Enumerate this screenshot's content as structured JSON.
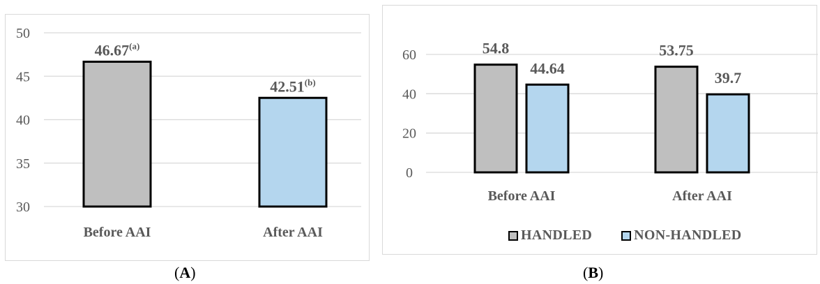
{
  "chart_data": [
    {
      "id": "A",
      "type": "bar",
      "categories": [
        "Before AAI",
        "After AAI"
      ],
      "values": [
        46.67,
        42.51
      ],
      "value_labels": [
        "46.67",
        "42.51"
      ],
      "superscripts": [
        "(a)",
        "(b)"
      ],
      "colors": [
        "#bfbfbf",
        "#b4d6ee"
      ],
      "ylim": [
        30,
        50
      ],
      "yticks": [
        "30",
        "35",
        "40",
        "45",
        "50"
      ],
      "grid": true,
      "caption": "A"
    },
    {
      "id": "B",
      "type": "bar",
      "categories": [
        "Before AAI",
        "After AAI"
      ],
      "series": [
        {
          "name": "HANDLED",
          "values": [
            54.8,
            53.75
          ],
          "color": "#bfbfbf"
        },
        {
          "name": "NON-HANDLED",
          "values": [
            44.64,
            39.7
          ],
          "color": "#b4d6ee"
        }
      ],
      "value_labels": [
        [
          "54.8",
          "53.75"
        ],
        [
          "44.64",
          "39.7"
        ]
      ],
      "ylim": [
        0,
        60
      ],
      "yticks": [
        "0",
        "20",
        "40",
        "60"
      ],
      "grid": true,
      "legend": "bottom",
      "caption": "B"
    }
  ]
}
